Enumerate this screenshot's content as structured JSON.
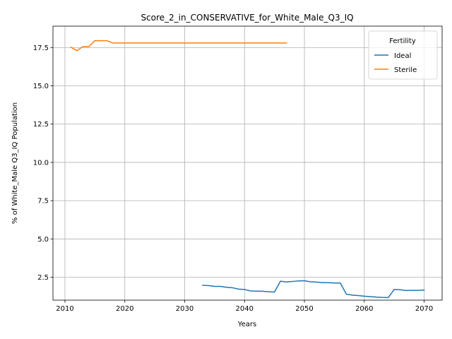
{
  "chart_data": {
    "type": "line",
    "title": "Score_2_in_CONSERVATIVE_for_White_Male_Q3_IQ",
    "xlabel": "Years",
    "ylabel": "% of White_Male Q3_IQ Population",
    "xlim": [
      2008,
      2073
    ],
    "ylim": [
      1.0,
      18.9
    ],
    "xticks": [
      2010,
      2020,
      2030,
      2040,
      2050,
      2060,
      2070
    ],
    "yticks": [
      2.5,
      5.0,
      7.5,
      10.0,
      12.5,
      15.0,
      17.5
    ],
    "ytick_labels": [
      "2.5",
      "5.0",
      "7.5",
      "10.0",
      "12.5",
      "15.0",
      "17.5"
    ],
    "grid": true,
    "legend": {
      "title": "Fertility",
      "placement": "top-right"
    },
    "series": [
      {
        "name": "Ideal",
        "color": "#1f77b4",
        "x": [
          2033,
          2034,
          2035,
          2036,
          2037,
          2038,
          2039,
          2040,
          2041,
          2042,
          2043,
          2044,
          2045,
          2046,
          2047,
          2048,
          2049,
          2050,
          2051,
          2052,
          2053,
          2054,
          2055,
          2056,
          2057,
          2058,
          2059,
          2060,
          2061,
          2062,
          2063,
          2064,
          2065,
          2066,
          2067,
          2068,
          2069,
          2070
        ],
        "y": [
          1.97,
          1.95,
          1.9,
          1.9,
          1.84,
          1.81,
          1.72,
          1.7,
          1.6,
          1.59,
          1.58,
          1.55,
          1.53,
          2.24,
          2.19,
          2.22,
          2.26,
          2.27,
          2.2,
          2.18,
          2.14,
          2.14,
          2.12,
          2.12,
          1.39,
          1.33,
          1.3,
          1.26,
          1.23,
          1.2,
          1.18,
          1.17,
          1.7,
          1.68,
          1.63,
          1.64,
          1.64,
          1.66
        ]
      },
      {
        "name": "Sterile",
        "color": "#ff7f0e",
        "x": [
          2011,
          2012,
          2013,
          2014,
          2015,
          2016,
          2017,
          2018,
          2019,
          2020,
          2021,
          2022,
          2023,
          2024,
          2025,
          2026,
          2027,
          2028,
          2029,
          2030,
          2031,
          2032,
          2033,
          2034,
          2035,
          2036,
          2037,
          2038,
          2039,
          2040,
          2041,
          2042,
          2043,
          2044,
          2045,
          2046,
          2047
        ],
        "y": [
          17.52,
          17.3,
          17.56,
          17.56,
          17.95,
          17.95,
          17.95,
          17.8,
          17.8,
          17.8,
          17.8,
          17.8,
          17.8,
          17.8,
          17.8,
          17.8,
          17.8,
          17.8,
          17.8,
          17.8,
          17.8,
          17.8,
          17.8,
          17.8,
          17.8,
          17.8,
          17.8,
          17.8,
          17.8,
          17.8,
          17.8,
          17.8,
          17.8,
          17.8,
          17.8,
          17.8,
          17.8
        ]
      }
    ]
  }
}
